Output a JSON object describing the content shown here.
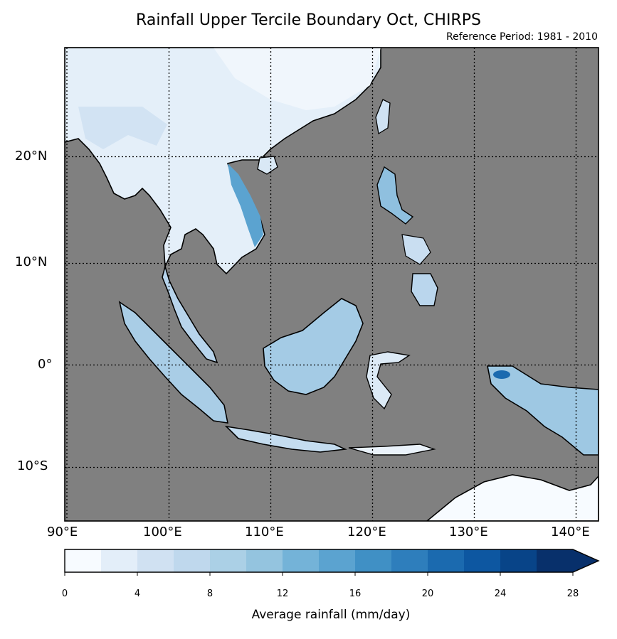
{
  "title": "Rainfall Upper Tercile Boundary Oct, CHIRPS",
  "subtitle": "Reference Period: 1981 - 2010",
  "axes": {
    "lon_ticks": [
      "90°E",
      "100°E",
      "110°E",
      "120°E",
      "130°E",
      "140°E"
    ],
    "lat_ticks": [
      "20°N",
      "10°N",
      "0°",
      "10°S"
    ]
  },
  "colorbar": {
    "label": "Average rainfall (mm/day)",
    "tick_labels": [
      "0",
      "4",
      "8",
      "12",
      "16",
      "20",
      "24",
      "28"
    ],
    "levels": [
      0,
      2,
      4,
      6,
      8,
      10,
      12,
      14,
      16,
      18,
      20,
      22,
      24,
      26,
      28
    ],
    "colors": [
      "#f7fbff",
      "#e3eef9",
      "#d0e1f2",
      "#bfd8ed",
      "#abd0e6",
      "#94c4df",
      "#74b3d8",
      "#5ba3d0",
      "#4090c5",
      "#2e7ebc",
      "#1b6aaf",
      "#0d57a1",
      "#084488",
      "#08306b"
    ],
    "extend": "max"
  },
  "map": {
    "ocean_color": "#808080",
    "extent": {
      "lon": [
        90,
        142
      ],
      "lat": [
        -15,
        31
      ]
    }
  }
}
